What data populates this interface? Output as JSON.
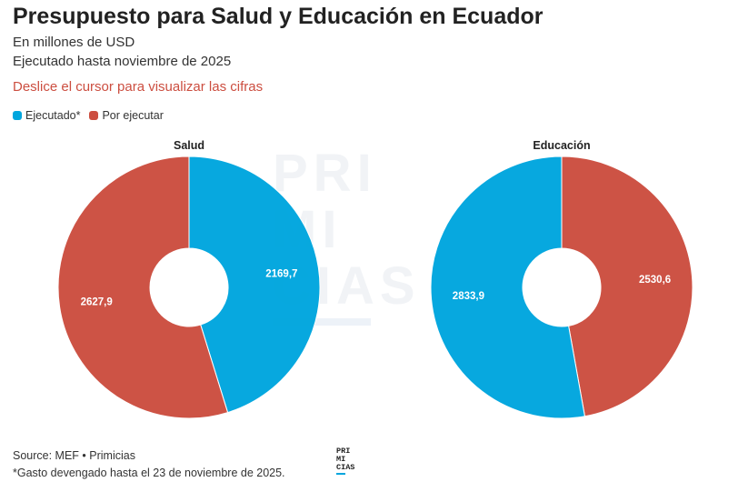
{
  "header": {
    "title": "Presupuesto para Salud y Educación en Ecuador",
    "subtitle_units": "En millones de USD",
    "subtitle_period": "Ejecutado hasta noviembre de 2025",
    "hint": "Deslice el cursor para visualizar las cifras"
  },
  "legend": {
    "items": [
      {
        "label": "Ejecutado*",
        "color": "#00a6de"
      },
      {
        "label": "Por ejecutar",
        "color": "#cc4e40"
      }
    ]
  },
  "watermark": {
    "lines": [
      "PRI",
      "MI",
      "CIAS"
    ]
  },
  "chart_data": [
    {
      "type": "pie",
      "title": "Salud",
      "donut": true,
      "start": "top",
      "slices": [
        {
          "name": "Ejecutado*",
          "value": 2169.7,
          "label": "2169,7",
          "color": "#00a6de"
        },
        {
          "name": "Por ejecutar",
          "value": 2627.9,
          "label": "2627,9",
          "color": "#cc4e40"
        }
      ]
    },
    {
      "type": "pie",
      "title": "Educación",
      "donut": true,
      "start": "top",
      "slices": [
        {
          "name": "Por ejecutar",
          "value": 2530.6,
          "label": "2530,6",
          "color": "#cc4e40"
        },
        {
          "name": "Ejecutado*",
          "value": 2833.9,
          "label": "2833,9",
          "color": "#00a6de"
        }
      ]
    }
  ],
  "footer": {
    "source": "Source: MEF • Primicias",
    "note": "*Gasto devengado hasta el 23 de noviembre de 2025."
  },
  "logo": {
    "lines": [
      "PRI",
      "MI",
      "CIAS"
    ]
  }
}
